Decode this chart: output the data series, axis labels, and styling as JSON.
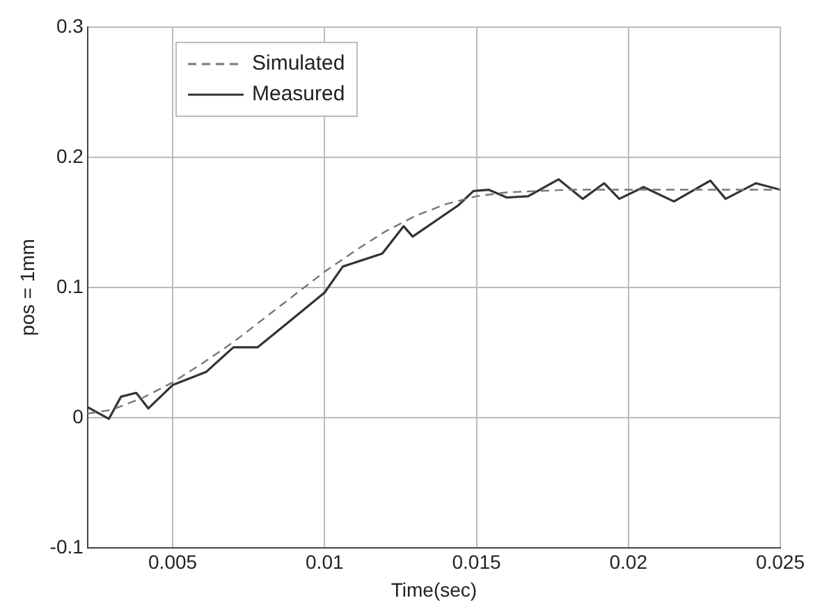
{
  "chart_data": {
    "type": "line",
    "xlabel": "Time(sec)",
    "ylabel": "pos = 1mm",
    "xlim": [
      0.0022,
      0.025
    ],
    "xticks": [
      0.005,
      0.01,
      0.015,
      0.02,
      0.025
    ],
    "ylim": [
      -0.1,
      0.3
    ],
    "yticks": [
      -0.1,
      0,
      0.1,
      0.2,
      0.3
    ],
    "grid": true,
    "legend": "top left",
    "marker": "none",
    "series": [
      {
        "name": "Simulated",
        "color": "#777777",
        "line_style": "dashed",
        "x": [
          0.0022,
          0.003,
          0.004,
          0.005,
          0.006,
          0.007,
          0.008,
          0.009,
          0.01,
          0.011,
          0.012,
          0.013,
          0.014,
          0.015,
          0.016,
          0.018,
          0.025
        ],
        "values": [
          0.003,
          0.006,
          0.015,
          0.027,
          0.042,
          0.058,
          0.076,
          0.094,
          0.112,
          0.128,
          0.143,
          0.155,
          0.164,
          0.17,
          0.173,
          0.175,
          0.175
        ]
      },
      {
        "name": "Measured",
        "color": "#333333",
        "line_style": "solid",
        "x": [
          0.0022,
          0.0029,
          0.0033,
          0.0038,
          0.0042,
          0.005,
          0.0061,
          0.007,
          0.0078,
          0.0088,
          0.01,
          0.0106,
          0.0119,
          0.0126,
          0.0129,
          0.0144,
          0.0149,
          0.0154,
          0.016,
          0.0167,
          0.0177,
          0.0185,
          0.0192,
          0.0197,
          0.0205,
          0.0215,
          0.0227,
          0.0232,
          0.0242,
          0.025
        ],
        "values": [
          0.008,
          -0.001,
          0.016,
          0.019,
          0.007,
          0.025,
          0.035,
          0.054,
          0.054,
          0.073,
          0.096,
          0.116,
          0.126,
          0.147,
          0.139,
          0.163,
          0.174,
          0.175,
          0.169,
          0.17,
          0.183,
          0.168,
          0.18,
          0.168,
          0.177,
          0.166,
          0.182,
          0.168,
          0.18,
          0.175
        ]
      }
    ]
  }
}
